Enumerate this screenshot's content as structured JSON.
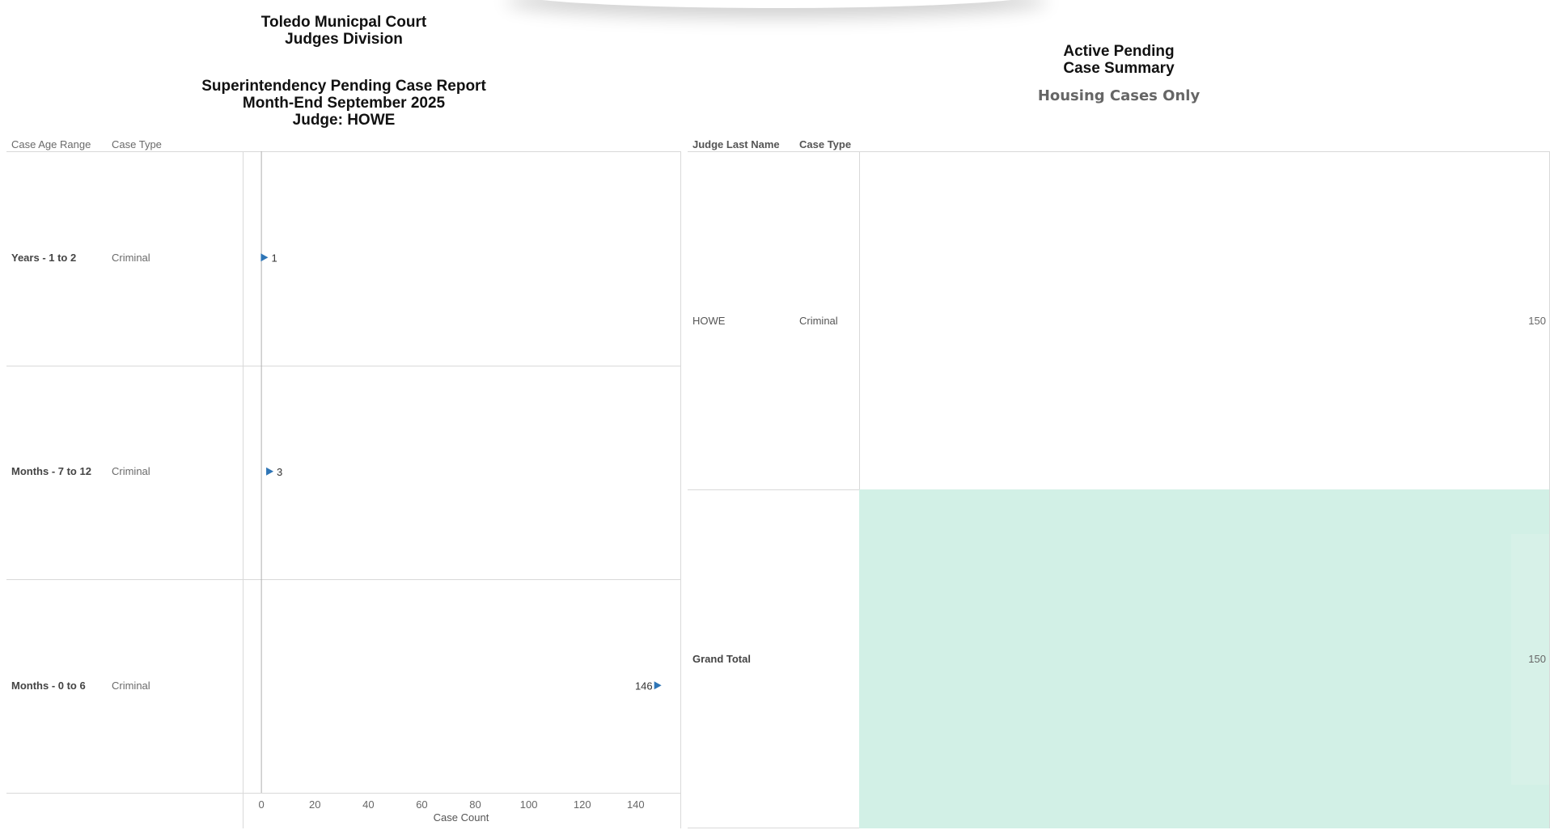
{
  "left_report": {
    "title_lines": [
      "Toledo Municpal Court",
      "Judges Division"
    ],
    "subtitle_lines": [
      "Superintendency Pending Case Report",
      "Month-End September 2025",
      "Judge: HOWE"
    ],
    "columns": {
      "age_range": "Case Age Range",
      "case_type": "Case Type"
    },
    "rows": [
      {
        "age_range": "Years - 1 to 2",
        "case_type": "Criminal",
        "value_label": "1"
      },
      {
        "age_range": "Months - 7 to 12",
        "case_type": "Criminal",
        "value_label": "3"
      },
      {
        "age_range": "Months - 0 to 6",
        "case_type": "Criminal",
        "value_label": "146"
      }
    ]
  },
  "chart_data": {
    "type": "bar",
    "orientation": "horizontal",
    "categories": [
      "Years - 1 to 2",
      "Months - 7 to 12",
      "Months - 0 to 6"
    ],
    "values": [
      1,
      3,
      146
    ],
    "xlabel": "Case Count",
    "ylabel": "",
    "xlim": [
      -7,
      157
    ],
    "x_ticks": [
      0,
      20,
      40,
      60,
      80,
      100,
      120,
      140
    ],
    "grid": false,
    "marker_color": "#2e75b6"
  },
  "right_report": {
    "title_lines": [
      "Active Pending",
      "Case Summary"
    ],
    "subtitle": "Housing Cases Only",
    "columns": {
      "judge": "Judge Last Name",
      "case_type": "Case Type"
    },
    "rows": [
      {
        "judge": "HOWE",
        "case_type": "Criminal",
        "value": "150"
      }
    ],
    "grand_total": {
      "label": "Grand Total",
      "value": "150"
    },
    "grand_total_color": "#d2f0e6"
  }
}
